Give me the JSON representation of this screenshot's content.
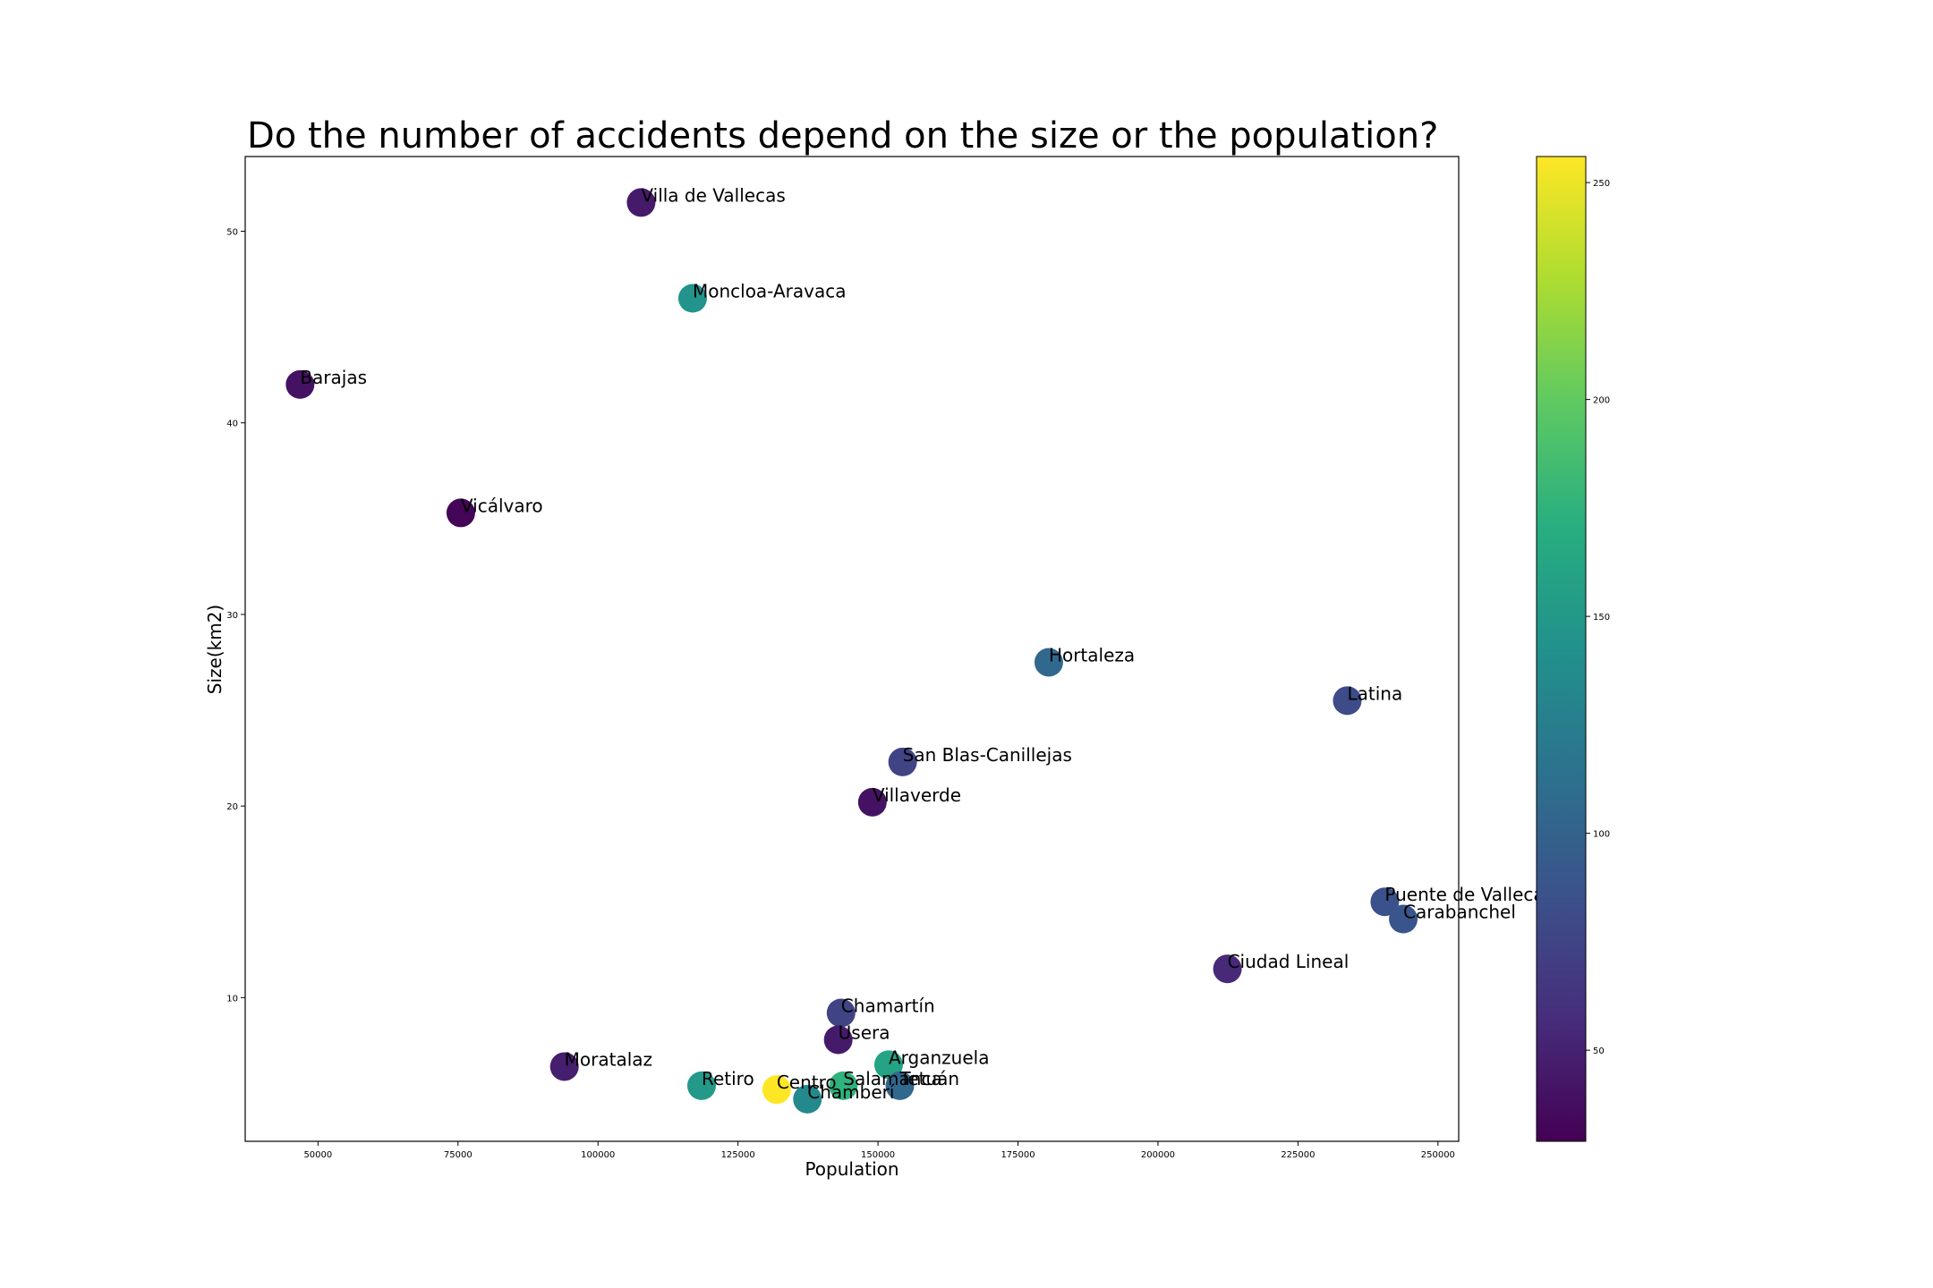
{
  "chart_data": {
    "type": "scatter",
    "title": "Do the number of accidents depend on the size or the population?",
    "xlabel": "Population",
    "ylabel": "Size(km2)",
    "xlim": [
      37000,
      253700
    ],
    "ylim": [
      2.5,
      53.9
    ],
    "xticks": [
      50000,
      75000,
      100000,
      125000,
      150000,
      175000,
      200000,
      225000,
      250000
    ],
    "yticks": [
      10,
      20,
      30,
      40,
      50
    ],
    "grid": false,
    "legend": "none",
    "colormap": "viridis",
    "colorbar": {
      "range": [
        29,
        256
      ],
      "ticks": [
        50,
        100,
        150,
        200,
        250
      ]
    },
    "points": [
      {
        "label": "Villa de Vallecas",
        "x": 107700,
        "y": 51.5,
        "c": 45
      },
      {
        "label": "Moncloa-Aravaca",
        "x": 116900,
        "y": 46.5,
        "c": 145
      },
      {
        "label": "Barajas",
        "x": 46800,
        "y": 42.0,
        "c": 40
      },
      {
        "label": "Vicálvaro",
        "x": 75500,
        "y": 35.3,
        "c": 32
      },
      {
        "label": "Hortaleza",
        "x": 180500,
        "y": 27.5,
        "c": 105
      },
      {
        "label": "Latina",
        "x": 233800,
        "y": 25.5,
        "c": 80
      },
      {
        "label": "San Blas-Canillejas",
        "x": 154400,
        "y": 22.3,
        "c": 75
      },
      {
        "label": "Villaverde",
        "x": 149000,
        "y": 20.2,
        "c": 40
      },
      {
        "label": "Puente de Vallecas",
        "x": 240500,
        "y": 15.0,
        "c": 85
      },
      {
        "label": "Carabanchel",
        "x": 243800,
        "y": 14.1,
        "c": 88
      },
      {
        "label": "Ciudad Lineal",
        "x": 212400,
        "y": 11.5,
        "c": 55
      },
      {
        "label": "Chamartín",
        "x": 143400,
        "y": 9.2,
        "c": 75
      },
      {
        "label": "Usera",
        "x": 142900,
        "y": 7.8,
        "c": 45
      },
      {
        "label": "Arganzuela",
        "x": 151900,
        "y": 6.5,
        "c": 160
      },
      {
        "label": "Moratalaz",
        "x": 94000,
        "y": 6.4,
        "c": 48
      },
      {
        "label": "Retiro",
        "x": 118500,
        "y": 5.4,
        "c": 150
      },
      {
        "label": "Salamanca",
        "x": 143800,
        "y": 5.4,
        "c": 175
      },
      {
        "label": "Tetuán",
        "x": 153900,
        "y": 5.4,
        "c": 105
      },
      {
        "label": "Centro",
        "x": 131900,
        "y": 5.2,
        "c": 256
      },
      {
        "label": "Chamberí",
        "x": 137400,
        "y": 4.7,
        "c": 135
      }
    ]
  }
}
